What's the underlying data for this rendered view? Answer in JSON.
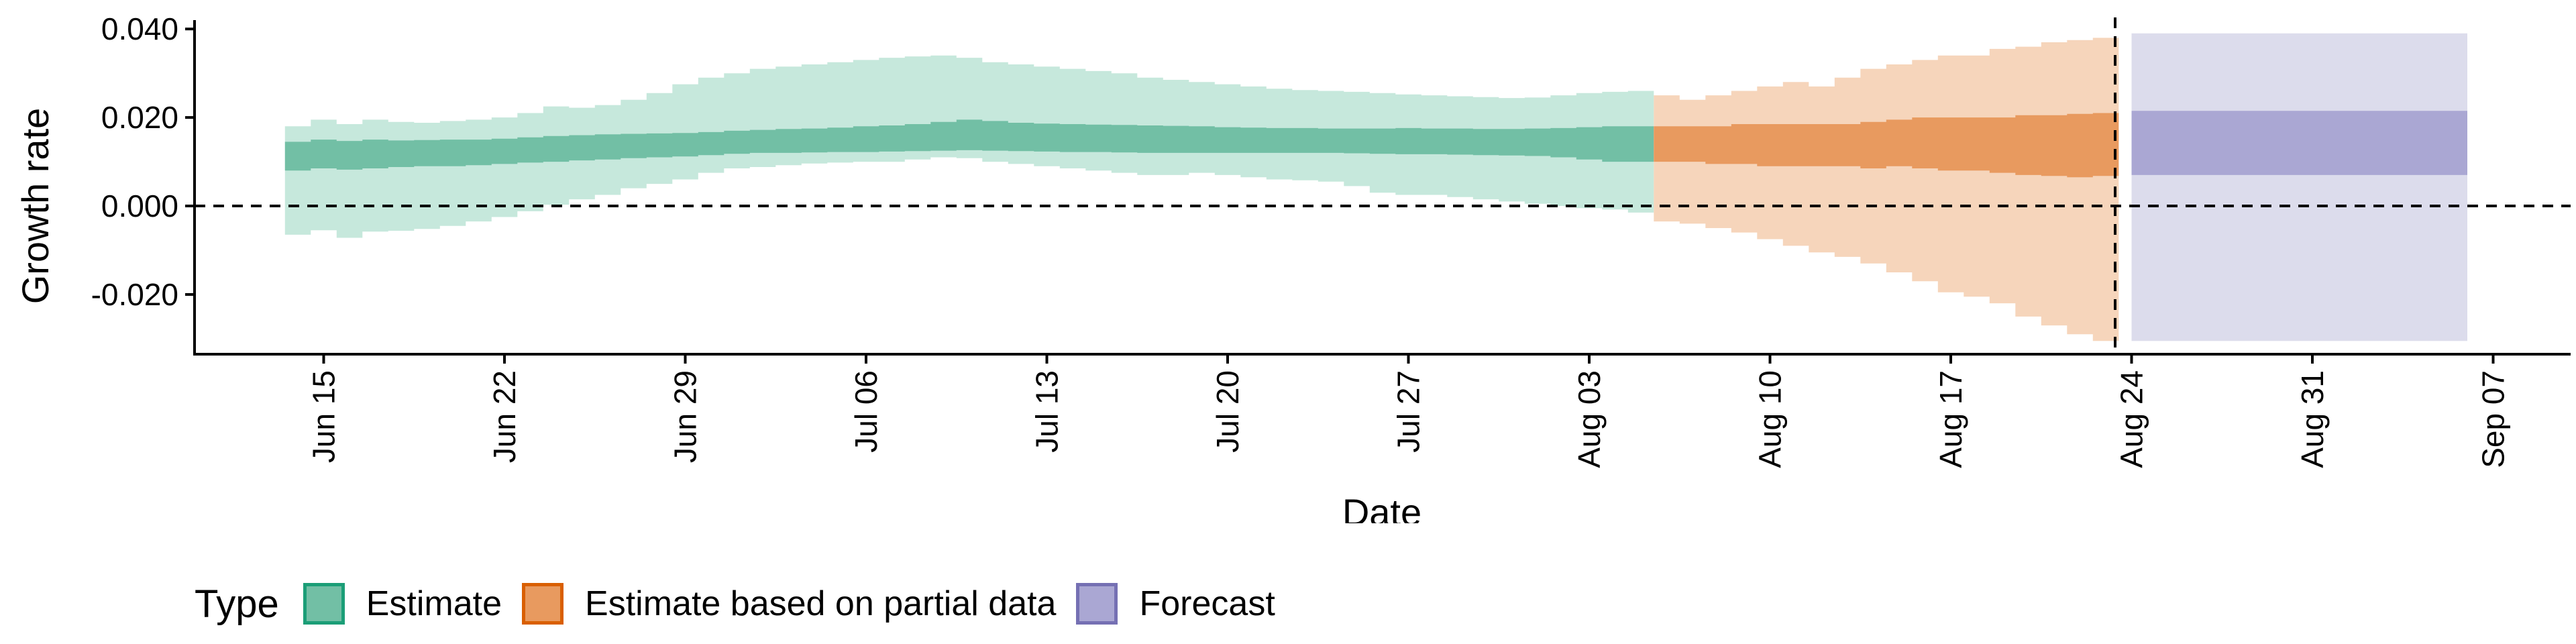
{
  "chart_data": {
    "type": "area",
    "xlabel": "Date",
    "ylabel": "Growth rate",
    "x_range": [
      "2020-06-10",
      "2020-09-10"
    ],
    "ylim": [
      -0.0335,
      0.042
    ],
    "x_ticks": [
      "Jun 15",
      "Jun 22",
      "Jun 29",
      "Jul 06",
      "Jul 13",
      "Jul 20",
      "Jul 27",
      "Aug 03",
      "Aug 10",
      "Aug 17",
      "Aug 24",
      "Aug 31",
      "Sep 07"
    ],
    "x_tick_dates": [
      "2020-06-15",
      "2020-06-22",
      "2020-06-29",
      "2020-07-06",
      "2020-07-13",
      "2020-07-20",
      "2020-07-27",
      "2020-08-03",
      "2020-08-10",
      "2020-08-17",
      "2020-08-24",
      "2020-08-31",
      "2020-09-07"
    ],
    "y_ticks": [
      0.04,
      0.02,
      0.0,
      -0.02
    ],
    "y_tick_labels": [
      "0.040",
      "0.020",
      "0.000",
      "-0.020"
    ],
    "reference_lines": {
      "horizontal_y": 0.0,
      "vertical_x": "2020-08-23"
    },
    "legend": {
      "title": "Type",
      "position": "bottom-left"
    },
    "grid": false,
    "series": [
      {
        "name": "Estimate",
        "color_band": "#c6e8dc",
        "color_core": "#72bfa5",
        "color_border": "#1b9e77",
        "x": [
          "2020-06-14",
          "2020-06-15",
          "2020-06-16",
          "2020-06-17",
          "2020-06-18",
          "2020-06-19",
          "2020-06-20",
          "2020-06-21",
          "2020-06-22",
          "2020-06-23",
          "2020-06-24",
          "2020-06-25",
          "2020-06-26",
          "2020-06-27",
          "2020-06-28",
          "2020-06-29",
          "2020-06-30",
          "2020-07-01",
          "2020-07-02",
          "2020-07-03",
          "2020-07-04",
          "2020-07-05",
          "2020-07-06",
          "2020-07-07",
          "2020-07-08",
          "2020-07-09",
          "2020-07-10",
          "2020-07-11",
          "2020-07-12",
          "2020-07-13",
          "2020-07-14",
          "2020-07-15",
          "2020-07-16",
          "2020-07-17",
          "2020-07-18",
          "2020-07-19",
          "2020-07-20",
          "2020-07-21",
          "2020-07-22",
          "2020-07-23",
          "2020-07-24",
          "2020-07-25",
          "2020-07-26",
          "2020-07-27",
          "2020-07-28",
          "2020-07-29",
          "2020-07-30",
          "2020-07-31",
          "2020-08-01",
          "2020-08-02",
          "2020-08-03",
          "2020-08-04",
          "2020-08-05"
        ],
        "lower_90": [
          -0.0065,
          -0.0055,
          -0.0072,
          -0.0058,
          -0.0056,
          -0.0052,
          -0.0045,
          -0.0035,
          -0.0025,
          -0.0012,
          0.0003,
          0.0015,
          0.0025,
          0.004,
          0.005,
          0.006,
          0.0075,
          0.0085,
          0.0088,
          0.0092,
          0.0096,
          0.0098,
          0.01,
          0.01,
          0.0105,
          0.011,
          0.0108,
          0.01,
          0.0095,
          0.009,
          0.0085,
          0.008,
          0.0075,
          0.007,
          0.007,
          0.0075,
          0.007,
          0.0065,
          0.006,
          0.0058,
          0.0055,
          0.0045,
          0.003,
          0.0025,
          0.0025,
          0.002,
          0.0015,
          0.001,
          0.0005,
          0.0,
          -0.0005,
          -0.0008,
          -0.0015
        ],
        "upper_90": [
          0.018,
          0.0195,
          0.0185,
          0.0195,
          0.019,
          0.0188,
          0.0192,
          0.0195,
          0.02,
          0.021,
          0.0225,
          0.0222,
          0.0228,
          0.024,
          0.0255,
          0.0275,
          0.029,
          0.03,
          0.031,
          0.0315,
          0.032,
          0.0325,
          0.033,
          0.0335,
          0.0338,
          0.034,
          0.0335,
          0.0325,
          0.032,
          0.0315,
          0.031,
          0.0305,
          0.03,
          0.029,
          0.0285,
          0.028,
          0.0275,
          0.027,
          0.0265,
          0.0262,
          0.026,
          0.0258,
          0.0255,
          0.0252,
          0.025,
          0.0248,
          0.0246,
          0.0244,
          0.0245,
          0.025,
          0.0255,
          0.0258,
          0.026
        ],
        "lower_50": [
          0.008,
          0.0085,
          0.0082,
          0.0085,
          0.0088,
          0.009,
          0.009,
          0.0092,
          0.0095,
          0.0098,
          0.01,
          0.0103,
          0.0105,
          0.0108,
          0.011,
          0.0112,
          0.0115,
          0.0118,
          0.012,
          0.012,
          0.0121,
          0.0122,
          0.0122,
          0.0123,
          0.0124,
          0.0125,
          0.0126,
          0.0125,
          0.0124,
          0.0123,
          0.0122,
          0.0122,
          0.0121,
          0.012,
          0.012,
          0.012,
          0.012,
          0.012,
          0.012,
          0.012,
          0.012,
          0.0119,
          0.0118,
          0.0117,
          0.0117,
          0.0116,
          0.0115,
          0.0114,
          0.0113,
          0.011,
          0.0105,
          0.01,
          0.01
        ],
        "upper_50": [
          0.0145,
          0.015,
          0.0147,
          0.015,
          0.0148,
          0.0149,
          0.015,
          0.015,
          0.0152,
          0.0155,
          0.0158,
          0.016,
          0.0162,
          0.0163,
          0.0164,
          0.0165,
          0.0167,
          0.017,
          0.0172,
          0.0174,
          0.0175,
          0.0177,
          0.018,
          0.0182,
          0.0185,
          0.019,
          0.0195,
          0.0192,
          0.0188,
          0.0186,
          0.0185,
          0.0184,
          0.0183,
          0.0182,
          0.0181,
          0.018,
          0.0178,
          0.0177,
          0.0176,
          0.0176,
          0.0175,
          0.0175,
          0.0175,
          0.0176,
          0.0175,
          0.0175,
          0.0174,
          0.0174,
          0.0175,
          0.0176,
          0.0178,
          0.018,
          0.018
        ]
      },
      {
        "name": "Estimate based on partial data",
        "color_band": "#f6d5bb",
        "color_core": "#e89a5f",
        "color_border": "#d95f02",
        "x": [
          "2020-08-06",
          "2020-08-07",
          "2020-08-08",
          "2020-08-09",
          "2020-08-10",
          "2020-08-11",
          "2020-08-12",
          "2020-08-13",
          "2020-08-14",
          "2020-08-15",
          "2020-08-16",
          "2020-08-17",
          "2020-08-18",
          "2020-08-19",
          "2020-08-20",
          "2020-08-21",
          "2020-08-22",
          "2020-08-23"
        ],
        "lower_90": [
          -0.0035,
          -0.004,
          -0.005,
          -0.006,
          -0.0075,
          -0.009,
          -0.0105,
          -0.0115,
          -0.013,
          -0.015,
          -0.017,
          -0.0195,
          -0.0205,
          -0.022,
          -0.025,
          -0.027,
          -0.029,
          -0.0305
        ],
        "upper_90": [
          0.025,
          0.024,
          0.025,
          0.026,
          0.027,
          0.028,
          0.027,
          0.029,
          0.031,
          0.032,
          0.033,
          0.034,
          0.034,
          0.0355,
          0.036,
          0.037,
          0.0375,
          0.038
        ],
        "lower_50": [
          0.01,
          0.01,
          0.0095,
          0.0095,
          0.009,
          0.009,
          0.009,
          0.009,
          0.0085,
          0.009,
          0.0085,
          0.008,
          0.008,
          0.0075,
          0.007,
          0.0068,
          0.0065,
          0.0068
        ],
        "upper_50": [
          0.018,
          0.018,
          0.018,
          0.0185,
          0.0185,
          0.0185,
          0.0185,
          0.0185,
          0.019,
          0.0195,
          0.02,
          0.02,
          0.02,
          0.02,
          0.0205,
          0.0205,
          0.0208,
          0.021
        ]
      },
      {
        "name": "Forecast",
        "color_band": "#dcdcec",
        "color_core": "#aaa7d3",
        "color_border": "#7570b3",
        "x": [
          "2020-08-24",
          "2020-09-06"
        ],
        "lower_90": [
          -0.0305,
          -0.0305
        ],
        "upper_90": [
          0.039,
          0.039
        ],
        "lower_50": [
          0.007,
          0.007
        ],
        "upper_50": [
          0.0215,
          0.0215
        ]
      }
    ]
  }
}
